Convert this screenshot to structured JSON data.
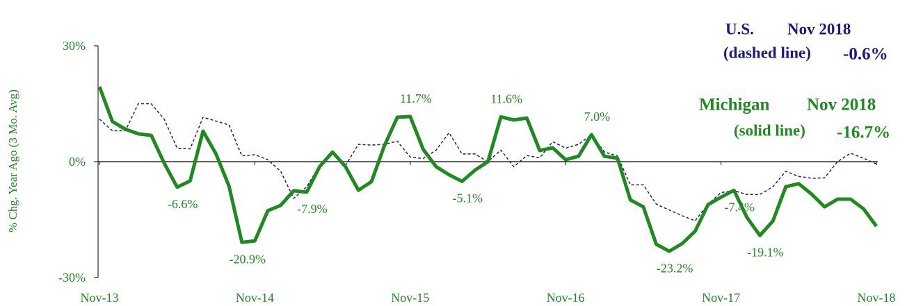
{
  "chart_data": {
    "type": "line",
    "y_label": "% Chg. Year Ago (3 Mo. Avg)",
    "categories": [
      "Nov-13",
      null,
      null,
      null,
      null,
      null,
      null,
      null,
      null,
      null,
      null,
      null,
      "Nov-14",
      null,
      null,
      null,
      null,
      null,
      null,
      null,
      null,
      null,
      null,
      null,
      "Nov-15",
      null,
      null,
      null,
      null,
      null,
      null,
      null,
      null,
      null,
      null,
      null,
      "Nov-16",
      null,
      null,
      null,
      null,
      null,
      null,
      null,
      null,
      null,
      null,
      null,
      "Nov-17",
      null,
      null,
      null,
      null,
      null,
      null,
      null,
      null,
      null,
      null,
      null,
      "Nov-18"
    ],
    "series": [
      {
        "name": "Michigan",
        "color": "#1f8a1f",
        "style": "solid",
        "values": [
          19.4,
          10.4,
          8.4,
          7.2,
          6.8,
          -0.4,
          -6.6,
          -5.0,
          7.9,
          2.0,
          -6.3,
          -20.9,
          -20.5,
          -12.7,
          -11.3,
          -7.5,
          -7.9,
          -1.3,
          2.5,
          -1.3,
          -7.4,
          -5.2,
          4.1,
          11.5,
          11.7,
          3.2,
          -1.3,
          -3.4,
          -5.1,
          -2.2,
          0,
          11.6,
          10.8,
          11.3,
          2.9,
          3.6,
          0.5,
          1.4,
          7.0,
          1.4,
          0.9,
          -9.9,
          -11.7,
          -21.4,
          -23.2,
          -21.2,
          -18.0,
          -11.1,
          -9.2,
          -7.4,
          -14.4,
          -19.1,
          -15.4,
          -6.5,
          -5.7,
          -8.4,
          -11.7,
          -9.7,
          -9.7,
          -12.2,
          -16.7
        ],
        "value_labels": [
          null,
          null,
          null,
          null,
          null,
          null,
          "-6.6%",
          null,
          null,
          null,
          null,
          "-20.9%",
          null,
          null,
          null,
          null,
          "-7.9%",
          null,
          null,
          null,
          null,
          null,
          null,
          null,
          "11.7%",
          null,
          null,
          null,
          "-5.1%",
          null,
          null,
          "11.6%",
          null,
          null,
          null,
          null,
          null,
          null,
          "7.0%",
          null,
          null,
          null,
          null,
          null,
          "-23.2%",
          null,
          null,
          null,
          null,
          "-7.4%",
          null,
          "-19.1%",
          null,
          null,
          null,
          null,
          null,
          null,
          null,
          null,
          null
        ]
      },
      {
        "name": "U.S.",
        "color": "#1a1a80",
        "style": "dashed",
        "values": [
          11,
          8,
          8,
          15,
          15,
          11,
          3.5,
          3.3,
          11.5,
          10.5,
          9.5,
          1.5,
          1.8,
          0.5,
          -2.5,
          -9.5,
          -6.5,
          -1,
          2,
          -1,
          4.5,
          4.3,
          4.5,
          5.3,
          1.2,
          0.8,
          3,
          7.5,
          2,
          2,
          0,
          3,
          -1.3,
          1.6,
          1,
          5.2,
          3.5,
          4.5,
          7,
          2.5,
          1.5,
          -6,
          -6,
          -11,
          -12.5,
          -14,
          -15.3,
          -11,
          -8,
          -7.5,
          -8.5,
          -8.5,
          -6.5,
          -2.5,
          -3.8,
          -4.3,
          -4.2,
          0,
          2.2,
          0.9,
          -0.6
        ]
      }
    ],
    "annotations": [
      "U.S.",
      "Nov 2018",
      "(dashed line)",
      "-0.6%",
      "Michigan",
      "Nov 2018",
      "(solid line)",
      "-16.7%"
    ],
    "ylim": [
      -30,
      30
    ],
    "yticks": [
      {
        "value": -30,
        "label": "-30%"
      },
      {
        "value": 0,
        "label": "0%"
      },
      {
        "value": 30,
        "label": "30%"
      }
    ]
  }
}
